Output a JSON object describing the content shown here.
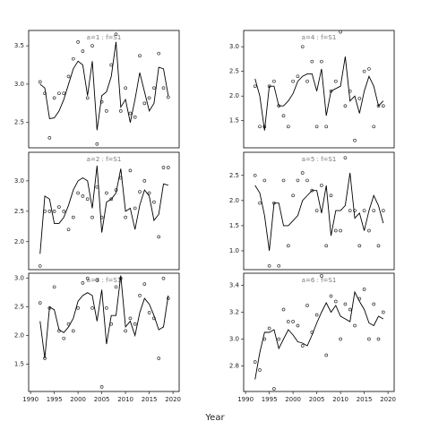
{
  "xlabel": "Year",
  "chart_data": [
    {
      "type": "scatter",
      "title": "a=1 : f=S1",
      "x": [
        1992,
        1993,
        1994,
        1995,
        1996,
        1997,
        1998,
        1999,
        2000,
        2001,
        2002,
        2003,
        2004,
        2005,
        2006,
        2007,
        2008,
        2009,
        2010,
        2011,
        2012,
        2013,
        2014,
        2015,
        2016,
        2017,
        2018,
        2019
      ],
      "xlim": [
        1989.6,
        2021.3
      ],
      "ylim": [
        2.17,
        3.7
      ],
      "yticks": [
        2.5,
        {
          "value": 3,
          "label": "3.0"
        },
        3.5
      ],
      "series": [
        {
          "mode": "markers",
          "color": "#333333",
          "values": [
            3.03,
            2.88,
            2.3,
            2.82,
            2.88,
            2.88,
            3.1,
            3.33,
            3.55,
            3.43,
            2.82,
            3.5,
            2.22,
            2.77,
            2.65,
            3.25,
            3.65,
            2.65,
            2.95,
            2.62,
            2.57,
            3.37,
            2.75,
            2.82,
            2.95,
            3.4,
            2.95,
            2.83
          ]
        },
        {
          "mode": "line",
          "color": "#000000",
          "values": [
            3.0,
            2.95,
            2.55,
            2.56,
            2.65,
            2.8,
            3.0,
            3.2,
            3.3,
            3.25,
            2.85,
            3.3,
            2.4,
            2.85,
            2.9,
            3.1,
            3.55,
            2.7,
            2.8,
            2.5,
            2.8,
            3.15,
            2.9,
            2.65,
            2.75,
            3.22,
            3.2,
            2.85
          ]
        }
      ]
    },
    {
      "type": "scatter",
      "title": "a=4 : f=S1",
      "x": [
        1992,
        1993,
        1994,
        1995,
        1996,
        1997,
        1998,
        1999,
        2000,
        2001,
        2002,
        2003,
        2004,
        2005,
        2006,
        2007,
        2008,
        2009,
        2010,
        2011,
        2012,
        2013,
        2014,
        2015,
        2016,
        2017,
        2018,
        2019
      ],
      "xlim": [
        1989.6,
        2021.3
      ],
      "ylim": [
        0.95,
        3.33
      ],
      "yticks": [
        1.5,
        {
          "value": 2,
          "label": "2.0"
        },
        2.5,
        {
          "value": 3,
          "label": "3.0"
        }
      ],
      "series": [
        {
          "mode": "markers",
          "color": "#333333",
          "values": [
            2.2,
            1.38,
            1.38,
            2.2,
            2.3,
            1.8,
            1.6,
            1.38,
            2.3,
            2.4,
            3.0,
            2.3,
            2.7,
            1.38,
            2.7,
            1.38,
            2.1,
            2.3,
            3.3,
            1.8,
            2.1,
            1.1,
            1.95,
            2.5,
            2.55,
            1.38,
            1.8,
            1.8
          ]
        },
        {
          "mode": "line",
          "color": "#000000",
          "values": [
            2.35,
            2.0,
            1.3,
            2.2,
            2.2,
            1.8,
            1.8,
            1.9,
            2.05,
            2.3,
            2.4,
            2.45,
            2.45,
            2.1,
            2.55,
            1.6,
            2.1,
            2.15,
            2.2,
            2.8,
            1.9,
            2.0,
            1.65,
            2.1,
            2.4,
            2.2,
            1.8,
            1.9
          ]
        }
      ]
    },
    {
      "type": "scatter",
      "title": "a=2 : f=S1",
      "x": [
        1992,
        1993,
        1994,
        1995,
        1996,
        1997,
        1998,
        1999,
        2000,
        2001,
        2002,
        2003,
        2004,
        2005,
        2006,
        2007,
        2008,
        2009,
        2010,
        2011,
        2012,
        2013,
        2014,
        2015,
        2016,
        2017,
        2018,
        2019
      ],
      "xlim": [
        1989.6,
        2021.3
      ],
      "ylim": [
        1.54,
        3.47
      ],
      "yticks": [
        {
          "value": 2,
          "label": "2.0"
        },
        2.5,
        {
          "value": 3,
          "label": "3.0"
        }
      ],
      "series": [
        {
          "mode": "markers",
          "color": "#333333",
          "values": [
            1.6,
            2.5,
            2.5,
            2.5,
            2.57,
            2.5,
            2.2,
            2.4,
            2.8,
            2.75,
            2.7,
            2.4,
            2.9,
            2.4,
            2.8,
            2.7,
            2.85,
            3.05,
            2.4,
            3.17,
            2.55,
            2.82,
            3.0,
            2.8,
            2.65,
            2.08,
            3.22,
            3.22
          ]
        },
        {
          "mode": "line",
          "color": "#000000",
          "values": [
            1.8,
            2.75,
            2.7,
            2.3,
            2.3,
            2.4,
            2.6,
            2.85,
            3.0,
            3.05,
            3.0,
            2.55,
            3.25,
            2.15,
            2.65,
            2.7,
            2.8,
            3.2,
            2.5,
            2.55,
            2.2,
            2.6,
            2.85,
            2.75,
            2.35,
            2.45,
            2.95,
            2.93
          ]
        }
      ]
    },
    {
      "type": "scatter",
      "title": "a=5 : f=S1",
      "x": [
        1992,
        1993,
        1994,
        1995,
        1996,
        1997,
        1998,
        1999,
        2000,
        2001,
        2002,
        2003,
        2004,
        2005,
        2006,
        2007,
        2008,
        2009,
        2010,
        2011,
        2012,
        2013,
        2014,
        2015,
        2016,
        2017,
        2018,
        2019
      ],
      "xlim": [
        1989.6,
        2021.3
      ],
      "ylim": [
        0.625,
        2.96
      ],
      "yticks": [
        {
          "value": 1,
          "label": "1.0"
        },
        1.5,
        {
          "value": 2,
          "label": "2.0"
        },
        2.5
      ],
      "series": [
        {
          "mode": "markers",
          "color": "#333333",
          "values": [
            2.5,
            1.95,
            2.4,
            0.7,
            1.95,
            0.7,
            2.4,
            1.1,
            2.1,
            2.4,
            2.55,
            2.4,
            2.2,
            1.8,
            2.3,
            1.1,
            2.1,
            1.4,
            1.4,
            2.85,
            1.8,
            1.8,
            1.1,
            1.8,
            1.4,
            1.8,
            1.1,
            1.8
          ]
        },
        {
          "mode": "line",
          "color": "#000000",
          "values": [
            2.3,
            2.15,
            1.7,
            1.0,
            1.95,
            1.95,
            1.5,
            1.5,
            1.6,
            1.7,
            2.0,
            2.1,
            2.2,
            2.2,
            1.75,
            2.3,
            1.3,
            1.8,
            1.8,
            1.9,
            2.55,
            1.65,
            1.75,
            1.4,
            1.8,
            2.1,
            1.9,
            1.55
          ]
        }
      ]
    },
    {
      "type": "scatter",
      "title": "a=3 : f=S1",
      "x": [
        1992,
        1993,
        1994,
        1995,
        1996,
        1997,
        1998,
        1999,
        2000,
        2001,
        2002,
        2003,
        2004,
        2005,
        2006,
        2007,
        2008,
        2009,
        2010,
        2011,
        2012,
        2013,
        2014,
        2015,
        2016,
        2017,
        2018,
        2019
      ],
      "xlim": [
        1989.6,
        2021.3
      ],
      "ylim": [
        1.02,
        3.09
      ],
      "xticks": [
        1990,
        1995,
        2000,
        2005,
        2010,
        2015,
        2020
      ],
      "yticks": [
        1.5,
        {
          "value": 2,
          "label": "2.0"
        },
        2.5,
        {
          "value": 3,
          "label": "3.0"
        }
      ],
      "series": [
        {
          "mode": "markers",
          "color": "#333333",
          "values": [
            2.57,
            1.6,
            2.48,
            2.85,
            2.08,
            1.95,
            2.2,
            2.08,
            2.48,
            2.92,
            3.0,
            2.48,
            2.97,
            1.1,
            2.48,
            2.2,
            2.85,
            3.0,
            2.08,
            2.3,
            2.2,
            2.7,
            2.9,
            2.4,
            2.3,
            1.6,
            3.0,
            2.65
          ]
        },
        {
          "mode": "line",
          "color": "#000000",
          "values": [
            2.25,
            1.6,
            2.5,
            2.45,
            2.1,
            2.05,
            2.15,
            2.3,
            2.6,
            2.7,
            2.75,
            2.7,
            2.25,
            2.8,
            1.85,
            2.35,
            2.35,
            3.05,
            2.15,
            2.25,
            2.0,
            2.4,
            2.65,
            2.55,
            2.35,
            2.1,
            2.15,
            2.7
          ]
        }
      ]
    },
    {
      "type": "scatter",
      "title": "a=6 : f=S1",
      "x": [
        1992,
        1993,
        1994,
        1995,
        1996,
        1997,
        1998,
        1999,
        2000,
        2001,
        2002,
        2003,
        2004,
        2005,
        2006,
        2007,
        2008,
        2009,
        2010,
        2011,
        2012,
        2013,
        2014,
        2015,
        2016,
        2017,
        2018,
        2019
      ],
      "xlim": [
        1989.6,
        2021.3
      ],
      "ylim": [
        2.61,
        3.49
      ],
      "xticks": [
        1990,
        1995,
        2000,
        2005,
        2010,
        2015,
        2020
      ],
      "yticks": [
        2.8,
        {
          "value": 3,
          "label": "3.0"
        },
        3.2,
        3.4
      ],
      "series": [
        {
          "mode": "markers",
          "color": "#333333",
          "values": [
            2.83,
            2.77,
            3.0,
            3.08,
            2.63,
            3.0,
            3.22,
            3.13,
            3.13,
            3.1,
            2.95,
            3.25,
            3.05,
            3.18,
            3.47,
            2.88,
            3.32,
            3.28,
            3.0,
            3.26,
            3.22,
            3.1,
            3.3,
            3.37,
            3.0,
            3.26,
            3.0,
            3.2
          ]
        },
        {
          "mode": "line",
          "color": "#000000",
          "values": [
            2.7,
            2.9,
            3.05,
            3.05,
            3.07,
            2.93,
            3.0,
            3.07,
            3.03,
            2.98,
            2.97,
            2.95,
            3.03,
            3.12,
            3.2,
            3.27,
            3.2,
            3.25,
            3.17,
            3.15,
            3.13,
            3.35,
            3.28,
            3.22,
            3.12,
            3.1,
            3.17,
            3.15
          ]
        }
      ]
    }
  ]
}
